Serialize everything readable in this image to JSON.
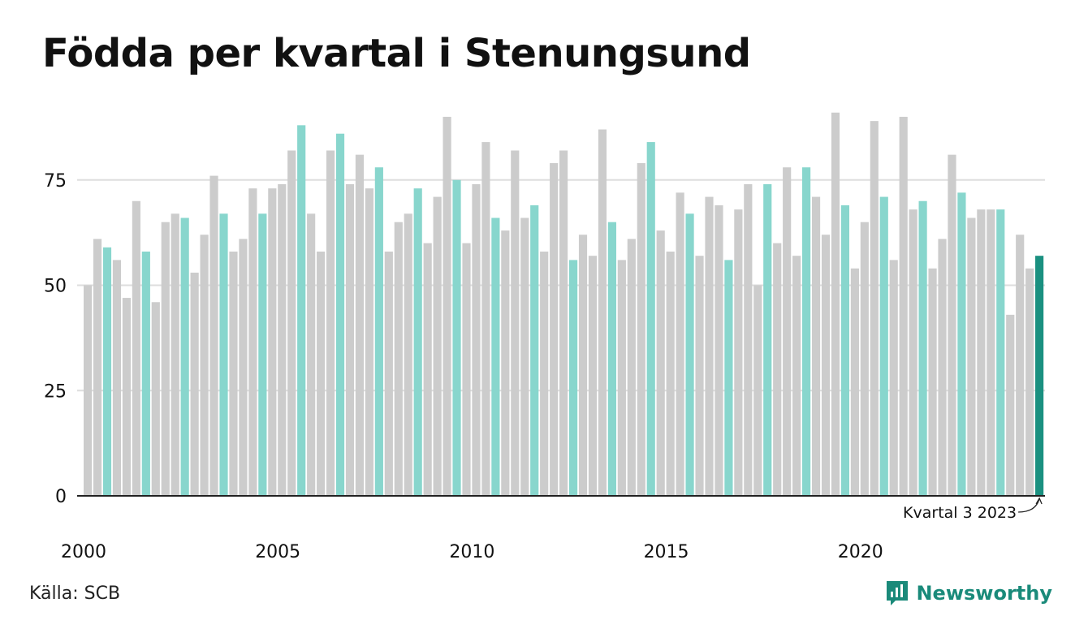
{
  "title": "Födda per kvartal i Stenungsund",
  "source": "Källa: SCB",
  "brand": "Newsworthy",
  "colors": {
    "bar_default": "#cccccc",
    "bar_q3": "#88d6cd",
    "bar_latest": "#1a9080",
    "grid": "#dddddd",
    "axis": "#222222",
    "text": "#111111",
    "brand": "#1a8a7a"
  },
  "chart_data": {
    "type": "bar",
    "title": "Födda per kvartal i Stenungsund",
    "xlabel": "",
    "ylabel": "",
    "ylim": [
      0,
      95
    ],
    "yticks": [
      0,
      25,
      50,
      75
    ],
    "xtick_labels": [
      "2000",
      "2005",
      "2010",
      "2015",
      "2020"
    ],
    "grid": true,
    "start_year": 2000,
    "highlight_quarter": 3,
    "annotation": "Kvartal 3 2023",
    "values": [
      50,
      61,
      59,
      56,
      47,
      70,
      58,
      46,
      65,
      67,
      66,
      53,
      62,
      76,
      67,
      58,
      61,
      73,
      67,
      73,
      74,
      82,
      88,
      67,
      58,
      82,
      86,
      74,
      81,
      73,
      78,
      58,
      65,
      67,
      73,
      60,
      71,
      90,
      75,
      60,
      74,
      84,
      66,
      63,
      82,
      66,
      69,
      58,
      79,
      82,
      56,
      62,
      57,
      87,
      65,
      56,
      61,
      79,
      84,
      63,
      58,
      72,
      67,
      57,
      71,
      69,
      56,
      68,
      74,
      50,
      74,
      60,
      78,
      57,
      78,
      71,
      62,
      91,
      69,
      54,
      65,
      89,
      71,
      56,
      90,
      68,
      70,
      54,
      61,
      81,
      72,
      66,
      68,
      68,
      68,
      43,
      62,
      54,
      57
    ]
  }
}
